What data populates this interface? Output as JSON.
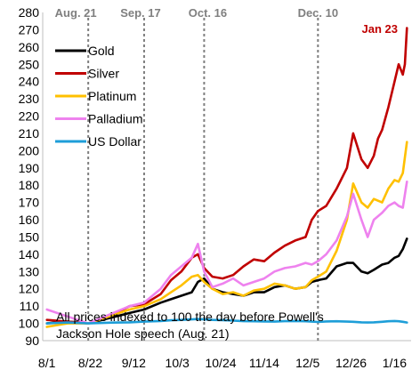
{
  "chart_data": {
    "type": "line",
    "title": "",
    "xlabel": "",
    "ylabel": "",
    "ylim": [
      90,
      280
    ],
    "y_ticks": [
      90,
      100,
      110,
      120,
      130,
      140,
      150,
      160,
      170,
      180,
      190,
      200,
      210,
      220,
      230,
      240,
      250,
      260,
      270,
      280
    ],
    "x_ticks": [
      {
        "label": "8/1",
        "x": 0
      },
      {
        "label": "8/22",
        "x": 21
      },
      {
        "label": "9/12",
        "x": 42
      },
      {
        "label": "10/3",
        "x": 63
      },
      {
        "label": "10/24",
        "x": 84
      },
      {
        "label": "11/14",
        "x": 105
      },
      {
        "label": "12/5",
        "x": 126
      },
      {
        "label": "12/26",
        "x": 147
      },
      {
        "label": "1/16",
        "x": 168
      }
    ],
    "xlim": [
      -2,
      176
    ],
    "vlines": [
      {
        "label": "Aug. 21",
        "x": 20
      },
      {
        "label": "Sep. 17",
        "x": 47
      },
      {
        "label": "Oct. 16",
        "x": 76
      },
      {
        "label": "Dec. 10",
        "x": 131
      }
    ],
    "end_annotation": {
      "text": "Jan 23",
      "color": "#c00000"
    },
    "note_line1": "All prices indexed to 100 the day before Powell's",
    "note_line2": "Jackson Hole speech (Aug. 21)",
    "legend": {
      "placement": "top-left"
    },
    "series": [
      {
        "name": "Gold",
        "color": "#000000",
        "x": [
          0,
          10,
          20,
          30,
          40,
          47,
          55,
          60,
          65,
          70,
          73,
          76,
          80,
          85,
          90,
          95,
          100,
          105,
          110,
          115,
          120,
          125,
          128,
          131,
          135,
          140,
          145,
          148,
          152,
          155,
          158,
          162,
          165,
          168,
          170,
          172,
          174
        ],
        "y": [
          100,
          101,
          100,
          103,
          106,
          108,
          112,
          114,
          116,
          118,
          124,
          126,
          120,
          118,
          117,
          116,
          118,
          118,
          121,
          122,
          120,
          121,
          124,
          125,
          126,
          133,
          135,
          135,
          130,
          129,
          131,
          134,
          135,
          138,
          139,
          143,
          149
        ]
      },
      {
        "name": "Silver",
        "color": "#c00000",
        "x": [
          0,
          10,
          20,
          30,
          40,
          47,
          55,
          60,
          65,
          70,
          73,
          76,
          80,
          85,
          90,
          95,
          100,
          105,
          110,
          115,
          120,
          125,
          128,
          131,
          135,
          140,
          145,
          148,
          152,
          155,
          158,
          160,
          162,
          165,
          168,
          170,
          172,
          173,
          174
        ],
        "y": [
          102,
          101,
          100,
          104,
          110,
          111,
          117,
          125,
          130,
          138,
          140,
          132,
          127,
          126,
          128,
          133,
          137,
          136,
          141,
          145,
          148,
          150,
          160,
          165,
          168,
          178,
          190,
          210,
          195,
          190,
          197,
          207,
          212,
          225,
          240,
          250,
          244,
          250,
          271
        ]
      },
      {
        "name": "Platinum",
        "color": "#ffc000",
        "x": [
          0,
          10,
          20,
          30,
          40,
          47,
          55,
          60,
          65,
          70,
          73,
          76,
          80,
          85,
          90,
          95,
          100,
          105,
          110,
          115,
          120,
          125,
          128,
          131,
          135,
          140,
          145,
          148,
          152,
          155,
          158,
          162,
          165,
          168,
          170,
          172,
          174
        ],
        "y": [
          98,
          100,
          100,
          104,
          108,
          110,
          114,
          118,
          122,
          127,
          128,
          124,
          120,
          117,
          118,
          116,
          119,
          120,
          123,
          122,
          120,
          121,
          125,
          127,
          130,
          142,
          160,
          181,
          170,
          167,
          172,
          170,
          178,
          183,
          182,
          187,
          205
        ]
      },
      {
        "name": "Palladium",
        "color": "#ee82ee",
        "x": [
          0,
          10,
          20,
          30,
          40,
          47,
          55,
          60,
          65,
          70,
          73,
          76,
          80,
          85,
          90,
          95,
          100,
          105,
          110,
          115,
          120,
          125,
          128,
          131,
          135,
          140,
          145,
          148,
          152,
          155,
          158,
          162,
          165,
          168,
          170,
          172,
          174
        ],
        "y": [
          108,
          104,
          100,
          105,
          110,
          112,
          120,
          128,
          133,
          138,
          146,
          130,
          121,
          123,
          126,
          122,
          124,
          126,
          130,
          132,
          133,
          135,
          134,
          136,
          140,
          148,
          162,
          175,
          160,
          150,
          160,
          164,
          168,
          170,
          168,
          167,
          182
        ]
      },
      {
        "name": "US Dollar",
        "color": "#1e9ed8",
        "x": [
          0,
          10,
          20,
          30,
          40,
          47,
          55,
          60,
          65,
          70,
          73,
          76,
          80,
          85,
          90,
          95,
          100,
          105,
          110,
          115,
          120,
          125,
          128,
          131,
          135,
          140,
          145,
          148,
          152,
          155,
          158,
          162,
          165,
          168,
          170,
          172,
          174
        ],
        "y": [
          100,
          100.5,
          100,
          100.4,
          100.6,
          101,
          101.4,
          101.8,
          102,
          102.3,
          102.5,
          102.3,
          102,
          101.9,
          101.6,
          101.3,
          101.2,
          101.1,
          101,
          101.3,
          101.4,
          101.2,
          101,
          100.8,
          101.1,
          101.2,
          101,
          100.9,
          100.6,
          100.5,
          100.6,
          100.9,
          101.2,
          101.4,
          101.2,
          100.9,
          100.5
        ]
      }
    ]
  }
}
